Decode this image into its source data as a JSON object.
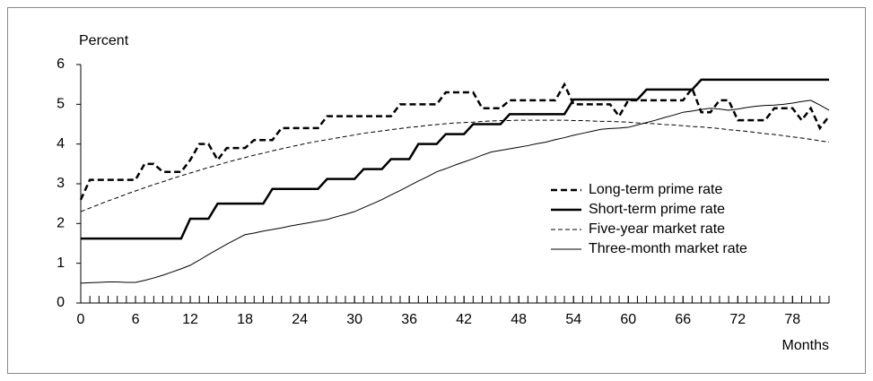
{
  "chart_data": {
    "type": "line",
    "y_label": "Percent",
    "x_label": "Months",
    "x": [
      0,
      1,
      2,
      3,
      4,
      5,
      6,
      7,
      8,
      9,
      10,
      11,
      12,
      13,
      14,
      15,
      16,
      17,
      18,
      19,
      20,
      21,
      22,
      23,
      24,
      25,
      26,
      27,
      28,
      29,
      30,
      31,
      32,
      33,
      34,
      35,
      36,
      37,
      38,
      39,
      40,
      41,
      42,
      43,
      44,
      45,
      46,
      47,
      48,
      49,
      50,
      51,
      52,
      53,
      54,
      55,
      56,
      57,
      58,
      59,
      60,
      61,
      62,
      63,
      64,
      65,
      66,
      67,
      68,
      69,
      70,
      71,
      72,
      73,
      74,
      75,
      76,
      77,
      78,
      79,
      80,
      81,
      82
    ],
    "xlim": [
      0,
      82
    ],
    "xticks": [
      0,
      6,
      12,
      18,
      24,
      30,
      36,
      42,
      48,
      54,
      60,
      66,
      72,
      78
    ],
    "ylim": [
      0,
      6
    ],
    "yticks": [
      0,
      1,
      2,
      3,
      4,
      5,
      6
    ],
    "legend": "center right",
    "series": [
      {
        "name": "Long-term prime rate",
        "color": "#000000",
        "dash": true,
        "weight": "bold",
        "values": [
          2.6,
          3.1,
          3.1,
          3.1,
          3.1,
          3.1,
          3.1,
          3.5,
          3.5,
          3.3,
          3.3,
          3.3,
          3.6,
          4.0,
          4.0,
          3.6,
          3.9,
          3.9,
          3.9,
          4.1,
          4.1,
          4.1,
          4.4,
          4.4,
          4.4,
          4.4,
          4.4,
          4.7,
          4.7,
          4.7,
          4.7,
          4.7,
          4.7,
          4.7,
          4.7,
          5.0,
          5.0,
          5.0,
          5.0,
          5.0,
          5.3,
          5.3,
          5.3,
          5.3,
          4.9,
          4.9,
          4.9,
          5.1,
          5.1,
          5.1,
          5.1,
          5.1,
          5.1,
          5.5,
          5.0,
          5.0,
          5.0,
          5.0,
          5.0,
          4.7,
          5.1,
          5.1,
          5.1,
          5.1,
          5.1,
          5.1,
          5.1,
          5.4,
          4.8,
          4.8,
          5.1,
          5.1,
          4.6,
          4.6,
          4.6,
          4.6,
          4.9,
          4.9,
          4.9,
          4.6,
          4.9,
          4.4,
          4.7
        ]
      },
      {
        "name": "Short-term prime rate",
        "color": "#000000",
        "dash": false,
        "weight": "bold",
        "values": [
          1.62,
          1.62,
          1.62,
          1.62,
          1.62,
          1.62,
          1.62,
          1.62,
          1.62,
          1.62,
          1.62,
          1.62,
          2.12,
          2.12,
          2.12,
          2.5,
          2.5,
          2.5,
          2.5,
          2.5,
          2.5,
          2.87,
          2.87,
          2.87,
          2.87,
          2.87,
          2.87,
          3.12,
          3.12,
          3.12,
          3.12,
          3.37,
          3.37,
          3.37,
          3.62,
          3.62,
          3.62,
          4.0,
          4.0,
          4.0,
          4.25,
          4.25,
          4.25,
          4.5,
          4.5,
          4.5,
          4.5,
          4.75,
          4.75,
          4.75,
          4.75,
          4.75,
          4.75,
          4.75,
          5.12,
          5.12,
          5.12,
          5.12,
          5.12,
          5.12,
          5.12,
          5.12,
          5.37,
          5.37,
          5.37,
          5.37,
          5.37,
          5.37,
          5.62,
          5.62,
          5.62,
          5.62,
          5.62,
          5.62,
          5.62,
          5.62,
          5.62,
          5.62,
          5.62,
          5.62,
          5.62,
          5.62,
          5.62
        ]
      },
      {
        "name": "Five-year market rate",
        "color": "#000000",
        "dash": true,
        "weight": "normal",
        "values": [
          2.3,
          2.39,
          2.48,
          2.57,
          2.65,
          2.74,
          2.82,
          2.9,
          2.98,
          3.05,
          3.13,
          3.2,
          3.27,
          3.34,
          3.41,
          3.47,
          3.54,
          3.6,
          3.66,
          3.72,
          3.77,
          3.83,
          3.88,
          3.93,
          3.98,
          4.03,
          4.07,
          4.11,
          4.15,
          4.19,
          4.23,
          4.27,
          4.3,
          4.33,
          4.36,
          4.39,
          4.42,
          4.44,
          4.47,
          4.49,
          4.51,
          4.53,
          4.54,
          4.55,
          4.57,
          4.58,
          4.59,
          4.59,
          4.6,
          4.6,
          4.6,
          4.6,
          4.6,
          4.6,
          4.59,
          4.59,
          4.58,
          4.57,
          4.57,
          4.56,
          4.55,
          4.53,
          4.52,
          4.51,
          4.49,
          4.48,
          4.46,
          4.44,
          4.43,
          4.41,
          4.39,
          4.36,
          4.34,
          4.32,
          4.29,
          4.26,
          4.24,
          4.21,
          4.18,
          4.15,
          4.12,
          4.08,
          4.05
        ]
      },
      {
        "name": "Three-month market rate",
        "color": "#000000",
        "dash": false,
        "weight": "normal",
        "values": [
          0.5,
          0.51,
          0.52,
          0.53,
          0.53,
          0.52,
          0.52,
          0.57,
          0.63,
          0.7,
          0.78,
          0.86,
          0.95,
          1.08,
          1.22,
          1.35,
          1.48,
          1.6,
          1.72,
          1.76,
          1.81,
          1.85,
          1.89,
          1.94,
          1.98,
          2.02,
          2.06,
          2.1,
          2.17,
          2.23,
          2.3,
          2.4,
          2.5,
          2.6,
          2.72,
          2.83,
          2.95,
          3.07,
          3.18,
          3.3,
          3.38,
          3.47,
          3.55,
          3.63,
          3.72,
          3.8,
          3.84,
          3.88,
          3.92,
          3.96,
          4.01,
          4.05,
          4.11,
          4.16,
          4.22,
          4.27,
          4.32,
          4.37,
          4.39,
          4.4,
          4.42,
          4.48,
          4.54,
          4.6,
          4.67,
          4.73,
          4.8,
          4.83,
          4.87,
          4.9,
          4.88,
          4.85,
          4.88,
          4.92,
          4.95,
          4.97,
          4.98,
          5.0,
          5.03,
          5.07,
          5.1,
          4.98,
          4.85
        ]
      }
    ]
  }
}
